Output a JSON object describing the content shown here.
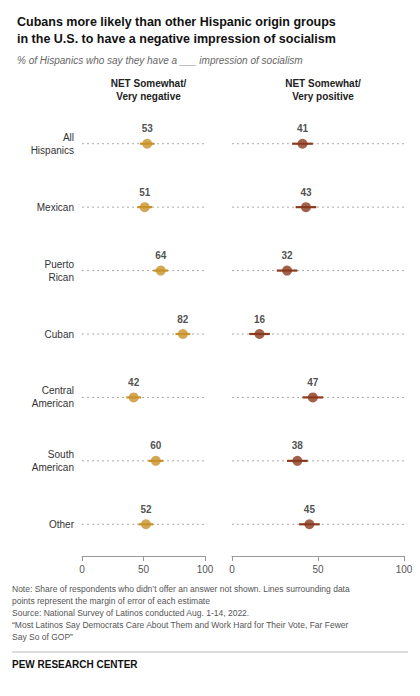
{
  "chart_data": {
    "type": "dot",
    "title": "Cubans more likely than other Hispanic origin groups\nin the U.S. to have a negative impression of socialism",
    "subtitle": "% of Hispanics who say they have a ___ impression of socialism",
    "categories": [
      "All\nHispanics",
      "Mexican",
      "Puerto\nRican",
      "Cuban",
      "Central\nAmerican",
      "South\nAmerican",
      "Other"
    ],
    "series": [
      {
        "name": "NET Somewhat/\nVery negative",
        "color": "#C8922A",
        "values": [
          53,
          51,
          64,
          82,
          42,
          60,
          52
        ],
        "error": [
          6,
          6,
          6,
          6,
          6,
          6,
          6
        ]
      },
      {
        "name": "NET Somewhat/\nVery positive",
        "color": "#8B3A1E",
        "values": [
          41,
          43,
          32,
          16,
          47,
          38,
          45
        ],
        "error": [
          6,
          6,
          6,
          6,
          6,
          6,
          6
        ]
      }
    ],
    "xlim": [
      0,
      100
    ],
    "xticks": [
      0,
      50,
      100
    ],
    "grid": false,
    "data_labels": true,
    "notes": [
      "Note: Share of respondents who didn’t offer an answer not shown. Lines surrounding data",
      "points represent the margin of error of each estimate",
      "Source: National Survey of Latinos conducted Aug. 1-14, 2022.",
      "“Most Latinos Say Democrats Care About Them and Work Hard for Their Vote, Far Fewer",
      "Say So of GOP”"
    ],
    "footer": "PEW RESEARCH CENTER"
  }
}
